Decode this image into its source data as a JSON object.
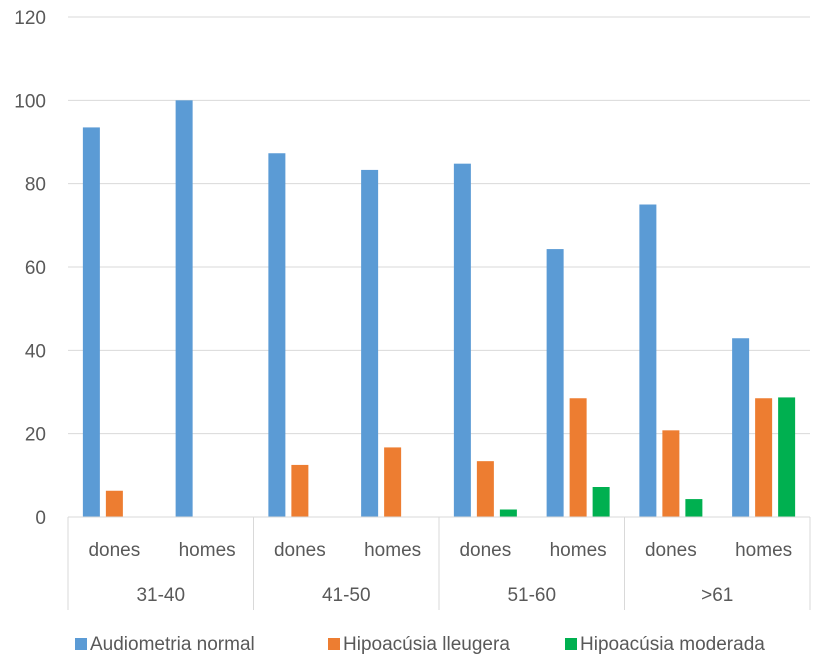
{
  "chart_data": {
    "type": "bar",
    "groups": [
      {
        "label": "31-40",
        "categories": [
          "dones",
          "homes"
        ]
      },
      {
        "label": "41-50",
        "categories": [
          "dones",
          "homes"
        ]
      },
      {
        "label": "51-60",
        "categories": [
          "dones",
          "homes"
        ]
      },
      {
        "label": ">61",
        "categories": [
          "dones",
          "homes"
        ]
      }
    ],
    "series": [
      {
        "name": "Audiometria normal",
        "color": "#5B9BD5",
        "values": [
          93.5,
          100,
          87.3,
          83.3,
          84.8,
          64.3,
          75,
          42.9
        ]
      },
      {
        "name": "Hipoacúsia lleugera",
        "color": "#ED7D31",
        "values": [
          6.3,
          0,
          12.5,
          16.7,
          13.4,
          28.5,
          20.8,
          28.5
        ]
      },
      {
        "name": "Hipoacúsia moderada",
        "color": "#00B050",
        "values": [
          0,
          0,
          0,
          0,
          1.8,
          7.2,
          4.3,
          28.7
        ]
      }
    ],
    "ylim": [
      0,
      120
    ],
    "yticks": [
      0,
      20,
      40,
      60,
      80,
      100,
      120
    ],
    "grid": true,
    "legend": "bottom"
  }
}
